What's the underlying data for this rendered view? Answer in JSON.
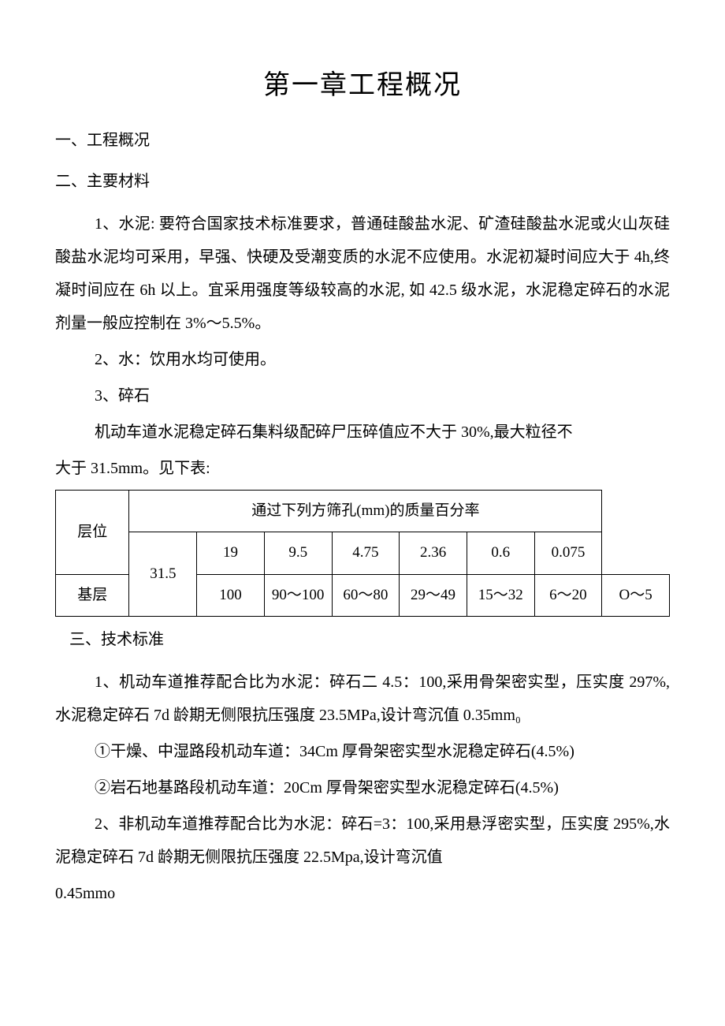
{
  "chapter_title": "第一章工程概况",
  "section1_heading": "一、工程概况",
  "section2_heading": "二、主要材料",
  "para_cement": "1、水泥: 要符合国家技术标准要求，普通硅酸盐水泥、矿渣硅酸盐水泥或火山灰硅酸盐水泥均可采用，早强、快硬及受潮变质的水泥不应使用。水泥初凝时间应大于 4h,终凝时间应在 6h 以上。宜采用强度等级较高的水泥, 如 42.5 级水泥，水泥稳定碎石的水泥剂量一般应控制在 3%～5.5%。",
  "para_water": "2、水：饮用水均可使用。",
  "para_gravel_label": "3、碎石",
  "para_gravel_body": "机动车道水泥稳定碎石集料级配碎尸压碎值应不大于 30%,最大粒径不",
  "para_gravel_body2": "大于 31.5mm。见下表:",
  "table": {
    "header_layer": "层位",
    "header_title": "通过下列方筛孔(mm)的质量百分率",
    "columns": [
      "31.5",
      "19",
      "9.5",
      "4.75",
      "2.36",
      "0.6",
      "0.075"
    ],
    "row_label": "基层",
    "row_data": [
      "100",
      "90～100",
      "60～80",
      "29～49",
      "15～32",
      "6～20",
      "O～5"
    ]
  },
  "section3_heading": "三、技术标准",
  "para_tech1": "1、机动车道推荐配合比为水泥：碎石二 4.5：100,采用骨架密实型，压实度 297%,水泥稳定碎石 7d 龄期无侧限抗压强度 23.5MPa,设计弯沉值 0.35mm₀",
  "para_tech1a": "①干燥、中湿路段机动车道：34Cm 厚骨架密实型水泥稳定碎石(4.5%)",
  "para_tech1b": "②岩石地基路段机动车道：20Cm 厚骨架密实型水泥稳定碎石(4.5%)",
  "para_tech2": "2、非机动车道推荐配合比为水泥：碎石=3：100,采用悬浮密实型，压实度 295%,水泥稳定碎石 7d 龄期无侧限抗压强度 22.5Mpa,设计弯沉值",
  "para_tech2b": "0.45mmo"
}
